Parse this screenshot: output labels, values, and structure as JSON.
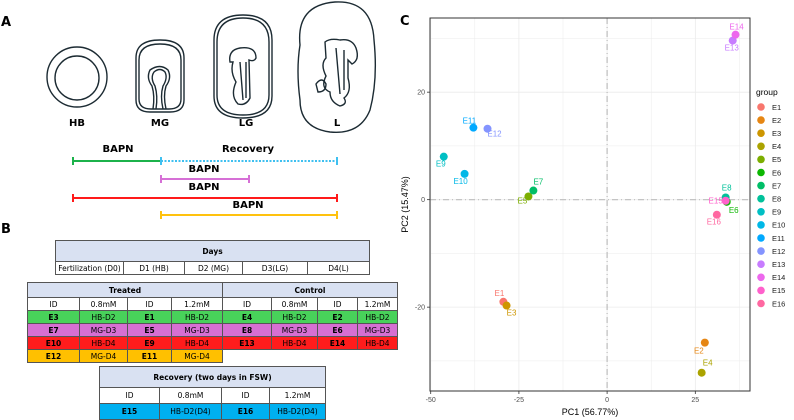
{
  "panel_labels": {
    "a": "A",
    "b": "B",
    "c": "C"
  },
  "panel_a": {
    "stages": [
      "HB",
      "MG",
      "LG",
      "L"
    ],
    "treatment_bars": [
      {
        "label": "BAPN",
        "color": "#1cb24b",
        "from_stage": "HB",
        "to_stage": "MG",
        "style": "solid"
      },
      {
        "label": "Recovery",
        "color": "#3fc0f0",
        "from_stage": "MG",
        "to_stage": "L",
        "style": "dotted"
      },
      {
        "label": "BAPN",
        "color": "#d670d6",
        "from_stage": "MG",
        "to_stage": "LG",
        "style": "solid"
      },
      {
        "label": "BAPN",
        "color": "#ff1a1a",
        "from_stage": "HB",
        "to_stage": "L",
        "style": "solid"
      },
      {
        "label": "BAPN",
        "color": "#ffc20e",
        "from_stage": "MG",
        "to_stage": "L",
        "style": "solid"
      }
    ]
  },
  "panel_b": {
    "days_table": {
      "title": "Days",
      "columns": [
        "Fertilization (D0)",
        "D1 (HB)",
        "D2 (MG)",
        "D3(LG)",
        "D4(L)"
      ]
    },
    "group_table": {
      "treated_title": "Treated",
      "control_title": "Control",
      "sub_headers": [
        "ID",
        "0.8mM",
        "ID",
        "1.2mM",
        "ID",
        "0.8mM",
        "ID",
        "1.2mM"
      ],
      "rows": [
        {
          "color": "green",
          "cells": [
            "E3",
            "HB-D2",
            "E1",
            "HB-D2",
            "E4",
            "HB-D2",
            "E2",
            "HB-D2"
          ]
        },
        {
          "color": "magenta",
          "cells": [
            "E7",
            "MG-D3",
            "E5",
            "MG-D3",
            "E8",
            "MG-D3",
            "E6",
            "MG-D3"
          ]
        },
        {
          "color": "red",
          "cells": [
            "E10",
            "HB-D4",
            "E9",
            "HB-D4",
            "E13",
            "HB-D4",
            "E14",
            "HB-D4"
          ]
        },
        {
          "color": "orange",
          "cells": [
            "E12",
            "MG-D4",
            "E11",
            "MG-D4"
          ]
        }
      ]
    },
    "recovery_table": {
      "title": "Recovery (two days in FSW)",
      "sub_headers": [
        "ID",
        "0.8mM",
        "ID",
        "1.2mM"
      ],
      "rows": [
        {
          "color": "blue",
          "cells": [
            "E15",
            "HB-D2(D4)",
            "E16",
            "HB-D2(D4)"
          ]
        }
      ]
    }
  },
  "chart_data": {
    "type": "scatter",
    "title": "",
    "xlabel": "PC1 (56.77%)",
    "ylabel": "PC2 (15.47%)",
    "xlim": [
      -50.2,
      40.5
    ],
    "ylim": [
      -35.6,
      33.8
    ],
    "xticks": [
      -50,
      -25,
      0,
      25
    ],
    "xtick_labels": [
      "-50",
      "-25",
      "0",
      "25"
    ],
    "yticks": [
      -20,
      0,
      20
    ],
    "ytick_labels": [
      "-20",
      "0",
      "20"
    ],
    "grid": true,
    "reference_lines": {
      "x": 0,
      "y": 0,
      "style": "dashdot"
    },
    "legend": {
      "title": "group",
      "position": "right"
    },
    "points": [
      {
        "name": "E1",
        "x": -29.4,
        "y": -19.0,
        "color": "#F8766D"
      },
      {
        "name": "E2",
        "x": 27.7,
        "y": -26.6,
        "color": "#E68613"
      },
      {
        "name": "E3",
        "x": -28.5,
        "y": -19.7,
        "color": "#CD9600"
      },
      {
        "name": "E4",
        "x": 26.8,
        "y": -32.2,
        "color": "#ABA300"
      },
      {
        "name": "E5",
        "x": -22.3,
        "y": 0.6,
        "color": "#7CAE00"
      },
      {
        "name": "E6",
        "x": 33.9,
        "y": -0.4,
        "color": "#0CB702"
      },
      {
        "name": "E7",
        "x": -20.9,
        "y": 1.7,
        "color": "#00BE67"
      },
      {
        "name": "E8",
        "x": 33.6,
        "y": 0.4,
        "color": "#00C19A"
      },
      {
        "name": "E9",
        "x": -46.3,
        "y": 8.0,
        "color": "#00BFC4"
      },
      {
        "name": "E10",
        "x": -40.4,
        "y": 4.8,
        "color": "#00B8E7"
      },
      {
        "name": "E11",
        "x": -37.9,
        "y": 13.4,
        "color": "#00A9FF"
      },
      {
        "name": "E12",
        "x": -33.9,
        "y": 13.2,
        "color": "#8494FF"
      },
      {
        "name": "E13",
        "x": 35.6,
        "y": 29.6,
        "color": "#C77CFF"
      },
      {
        "name": "E14",
        "x": 36.4,
        "y": 30.7,
        "color": "#ED68ED"
      },
      {
        "name": "E15",
        "x": 33.6,
        "y": -0.2,
        "color": "#FF61CC"
      },
      {
        "name": "E16",
        "x": 31.1,
        "y": -2.8,
        "color": "#FF68A1"
      }
    ]
  }
}
